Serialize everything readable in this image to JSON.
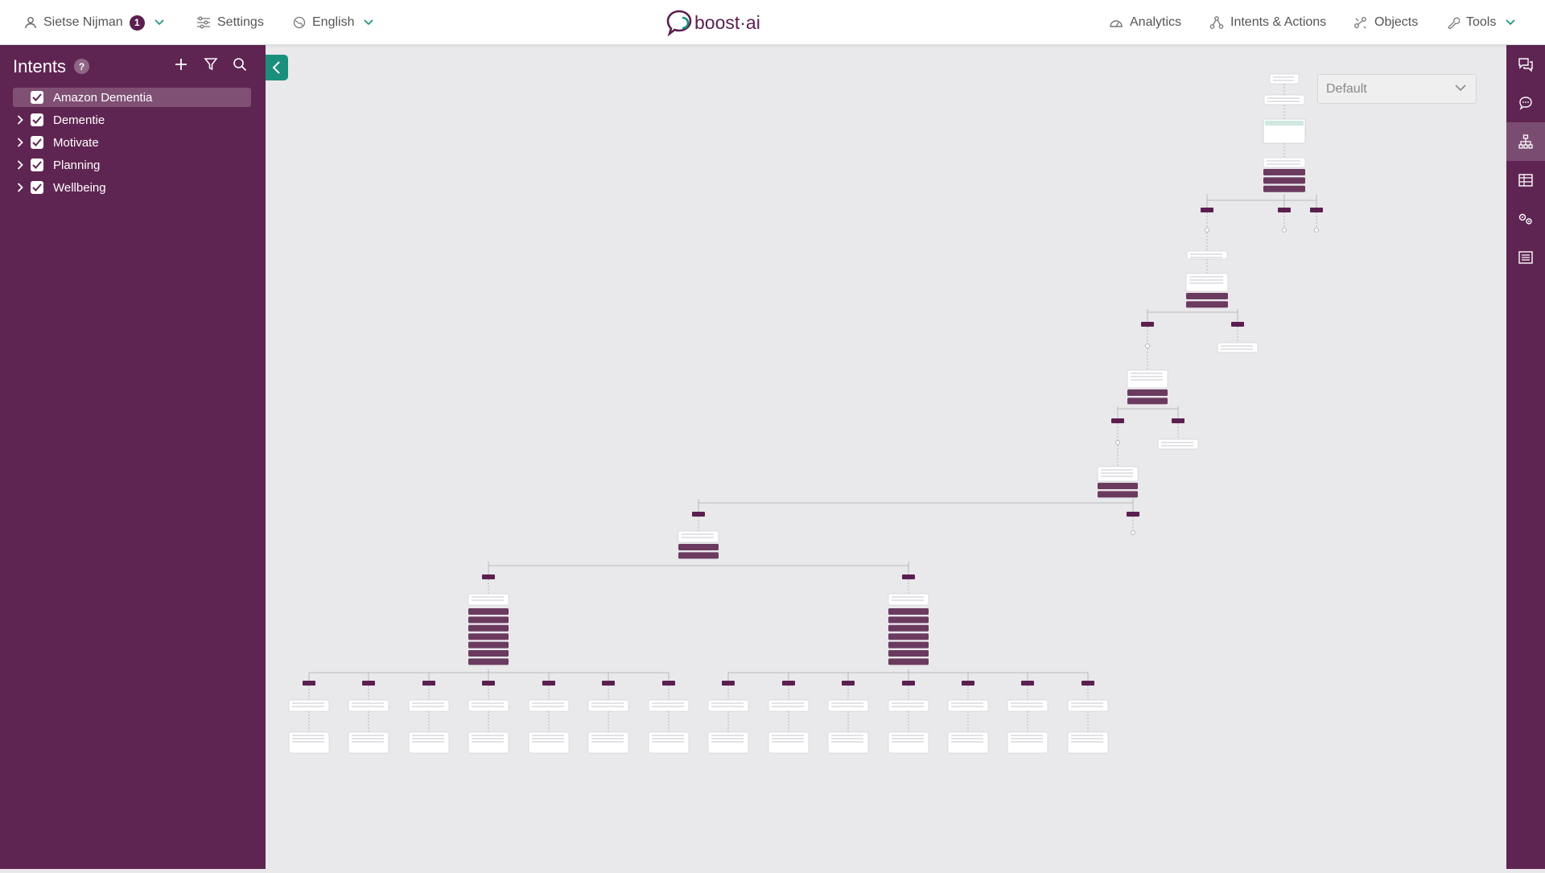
{
  "topbar": {
    "user_name": "Sietse Nijman",
    "user_badge": "1",
    "settings_label": "Settings",
    "language_label": "English",
    "logo_text": "boost·ai",
    "nav": {
      "analytics": "Analytics",
      "intents_actions": "Intents & Actions",
      "objects": "Objects",
      "tools": "Tools"
    }
  },
  "sidebar": {
    "title": "Intents",
    "help": "?",
    "items": [
      {
        "label": "Amazon Dementia",
        "expandable": false,
        "selected": true
      },
      {
        "label": "Dementie",
        "expandable": true,
        "selected": false
      },
      {
        "label": "Motivate",
        "expandable": true,
        "selected": false
      },
      {
        "label": "Planning",
        "expandable": true,
        "selected": false
      },
      {
        "label": "Wellbeing",
        "expandable": true,
        "selected": false
      }
    ]
  },
  "canvas": {
    "version_select": "Default"
  },
  "colors": {
    "brand": "#5f2552",
    "accent": "#1a8f7c",
    "canvas_bg": "#e9e8eb"
  },
  "rightbar_icons": [
    "chat-bubbles-icon",
    "message-icon",
    "flow-tree-icon",
    "table-icon",
    "gears-icon",
    "list-icon"
  ]
}
